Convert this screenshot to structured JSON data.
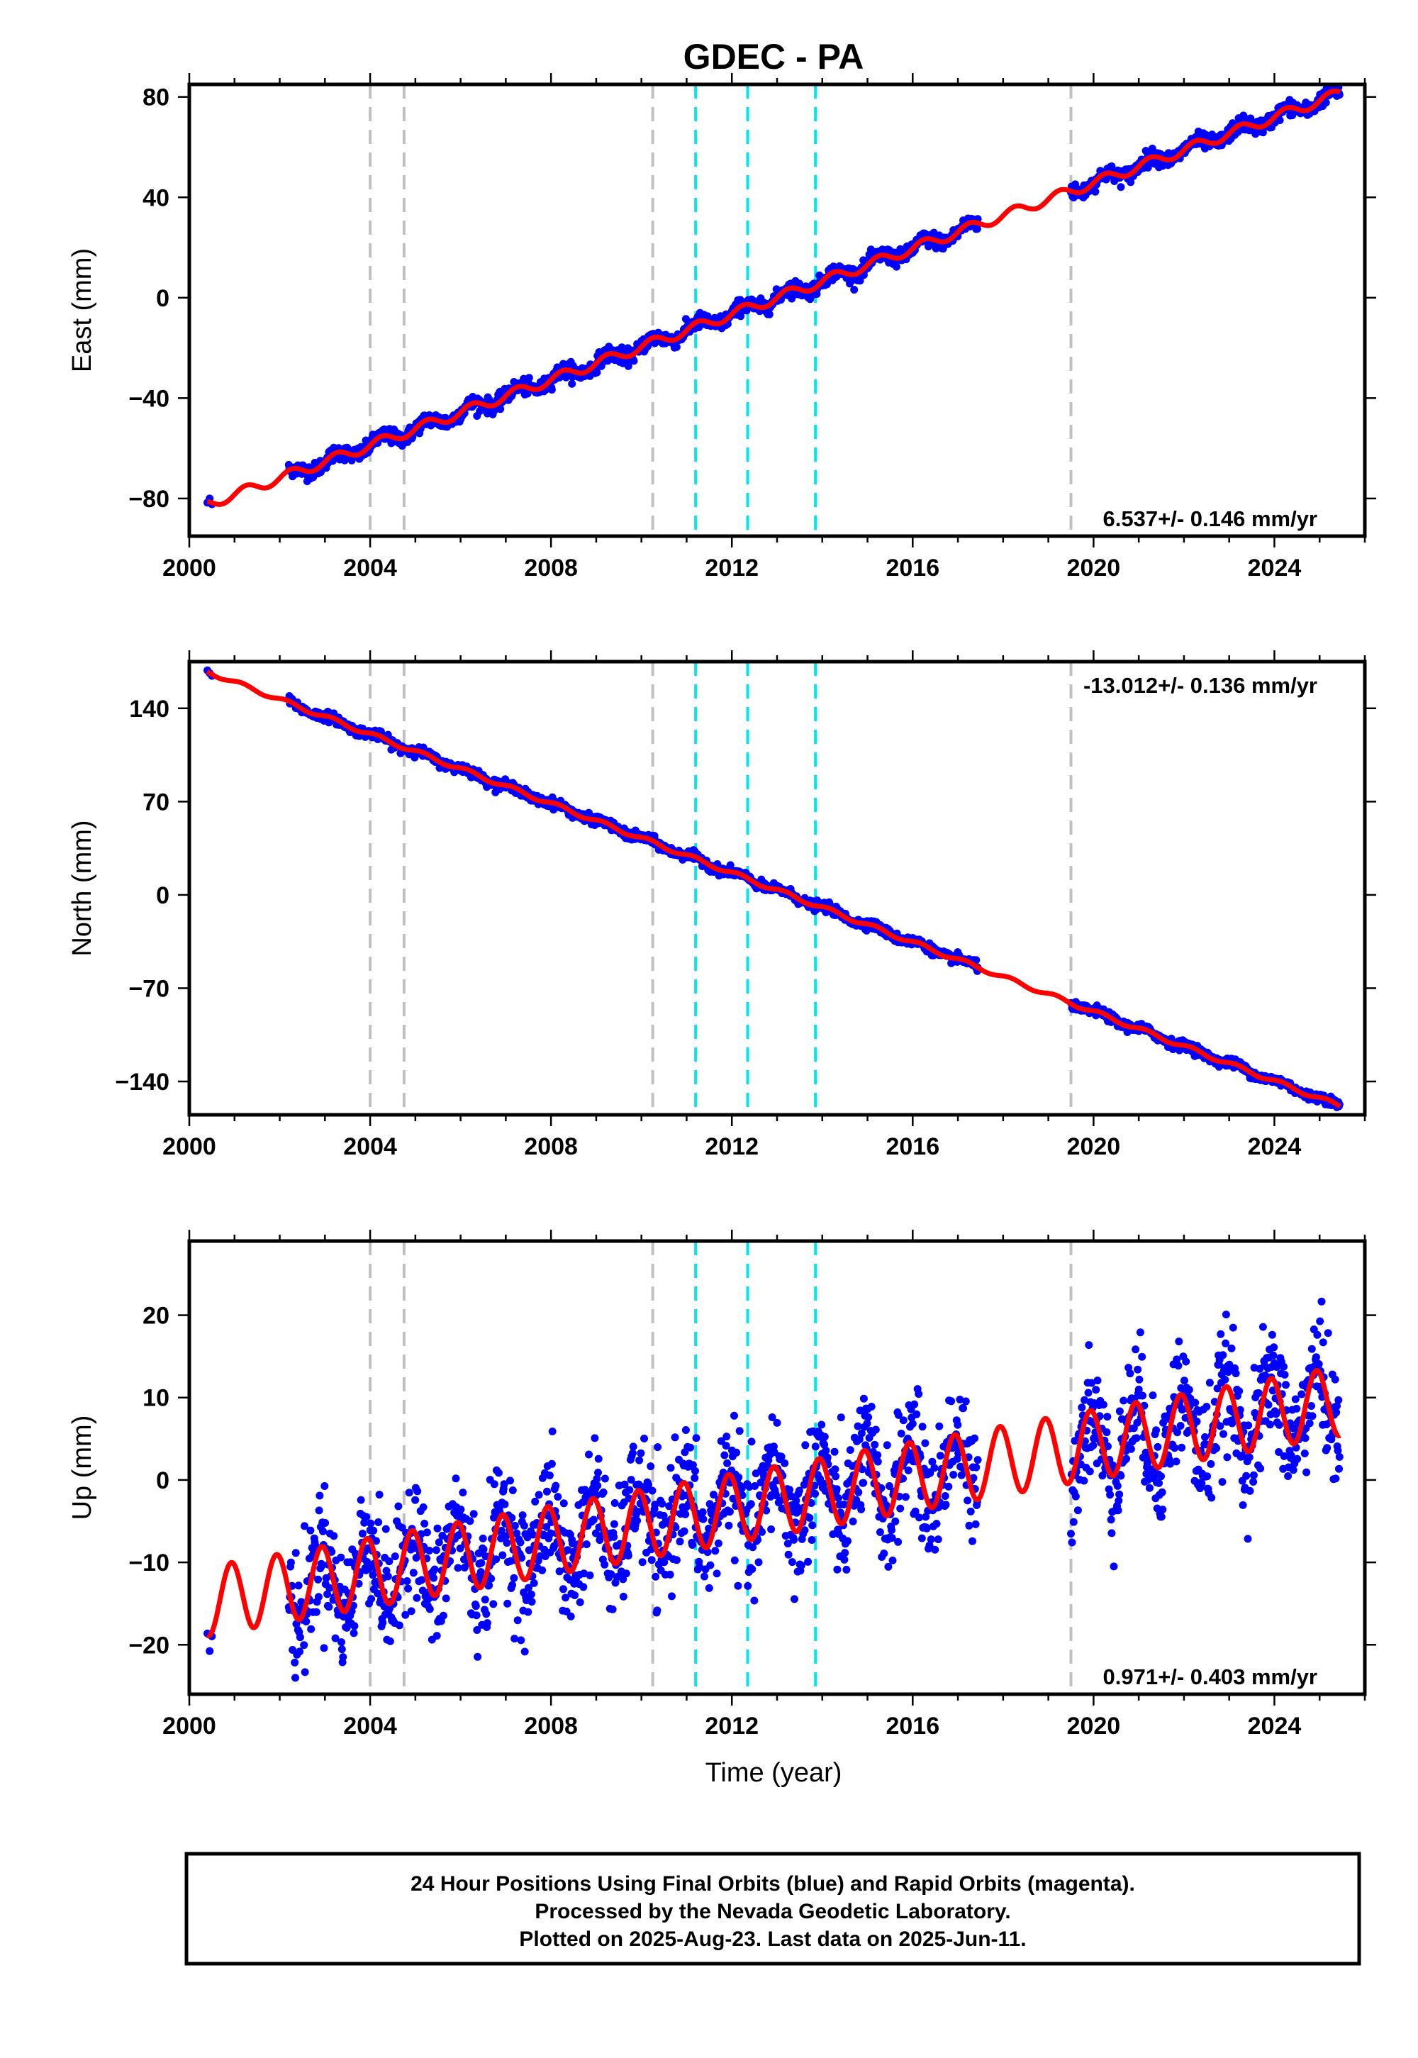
{
  "title": "GDEC - PA",
  "xlabel": "Time (year)",
  "xticks": [
    "2000",
    "2004",
    "2008",
    "2012",
    "2016",
    "2020",
    "2024"
  ],
  "footer": {
    "line1": "24 Hour Positions Using Final Orbits (blue) and Rapid Orbits (magenta).",
    "line2": "Processed by the Nevada Geodetic Laboratory.",
    "line3": "Plotted on 2025-Aug-23. Last data on 2025-Jun-11."
  },
  "colors": {
    "points": "#0000ff",
    "fit": "#ff0000",
    "gray_events": "#c0c0c0",
    "cyan_events": "#00e5ee"
  },
  "chart_data": [
    {
      "type": "scatter",
      "ylabel": "East (mm)",
      "xlim": [
        2000,
        2026
      ],
      "ylim": [
        -95,
        85
      ],
      "yticks": [
        -80,
        -40,
        0,
        40,
        80
      ],
      "rate": "6.537+/- 0.146 mm/yr",
      "events_gray": [
        2004.0,
        2004.75,
        2010.25,
        2019.5
      ],
      "events_cyan": [
        2011.2,
        2012.35,
        2013.85
      ],
      "data_segments": [
        [
          2000.4,
          2000.5
        ],
        [
          2002.2,
          2017.45
        ],
        [
          2019.5,
          2025.45
        ]
      ],
      "trend": {
        "t0": 2013.0,
        "y0": 0.0,
        "rate": 6.537
      },
      "seasonal": {
        "amp": 2.0,
        "phase": 0.0
      },
      "noise": 1.5,
      "fit_start": 2000.4,
      "fit_end": 2025.45
    },
    {
      "type": "scatter",
      "ylabel": "North (mm)",
      "xlim": [
        2000,
        2026
      ],
      "ylim": [
        -165,
        175
      ],
      "yticks": [
        -140,
        -70,
        0,
        70,
        140
      ],
      "rate": "-13.012+/- 0.136 mm/yr",
      "events_gray": [
        2004.0,
        2004.75,
        2010.25,
        2019.5
      ],
      "events_cyan": [
        2011.2,
        2012.35,
        2013.85
      ],
      "data_segments": [
        [
          2000.4,
          2000.5
        ],
        [
          2002.2,
          2017.45
        ],
        [
          2019.5,
          2025.45
        ]
      ],
      "trend": {
        "t0": 2013.5,
        "y0": -3.0,
        "rate": -13.012
      },
      "seasonal": {
        "amp": 1.5,
        "phase": 0.5
      },
      "noise": 1.7,
      "fit_start": 2000.4,
      "fit_end": 2025.45
    },
    {
      "type": "scatter",
      "ylabel": "Up (mm)",
      "xlim": [
        2000,
        2026
      ],
      "ylim": [
        -26,
        29
      ],
      "yticks": [
        -20,
        -10,
        0,
        10,
        20
      ],
      "rate": "0.971+/- 0.403 mm/yr",
      "events_gray": [
        2004.0,
        2004.75,
        2010.25,
        2019.5
      ],
      "events_cyan": [
        2011.2,
        2012.35,
        2013.85
      ],
      "data_segments": [
        [
          2000.4,
          2000.5
        ],
        [
          2002.2,
          2017.45
        ],
        [
          2019.5,
          2025.45
        ]
      ],
      "trend": {
        "t0": 2013.0,
        "y0": -2.5,
        "rate": 0.971
      },
      "seasonal": {
        "amp": 4.2,
        "phase": 2.0
      },
      "noise": 3.6,
      "fit_start": 2000.4,
      "fit_end": 2025.45
    }
  ]
}
